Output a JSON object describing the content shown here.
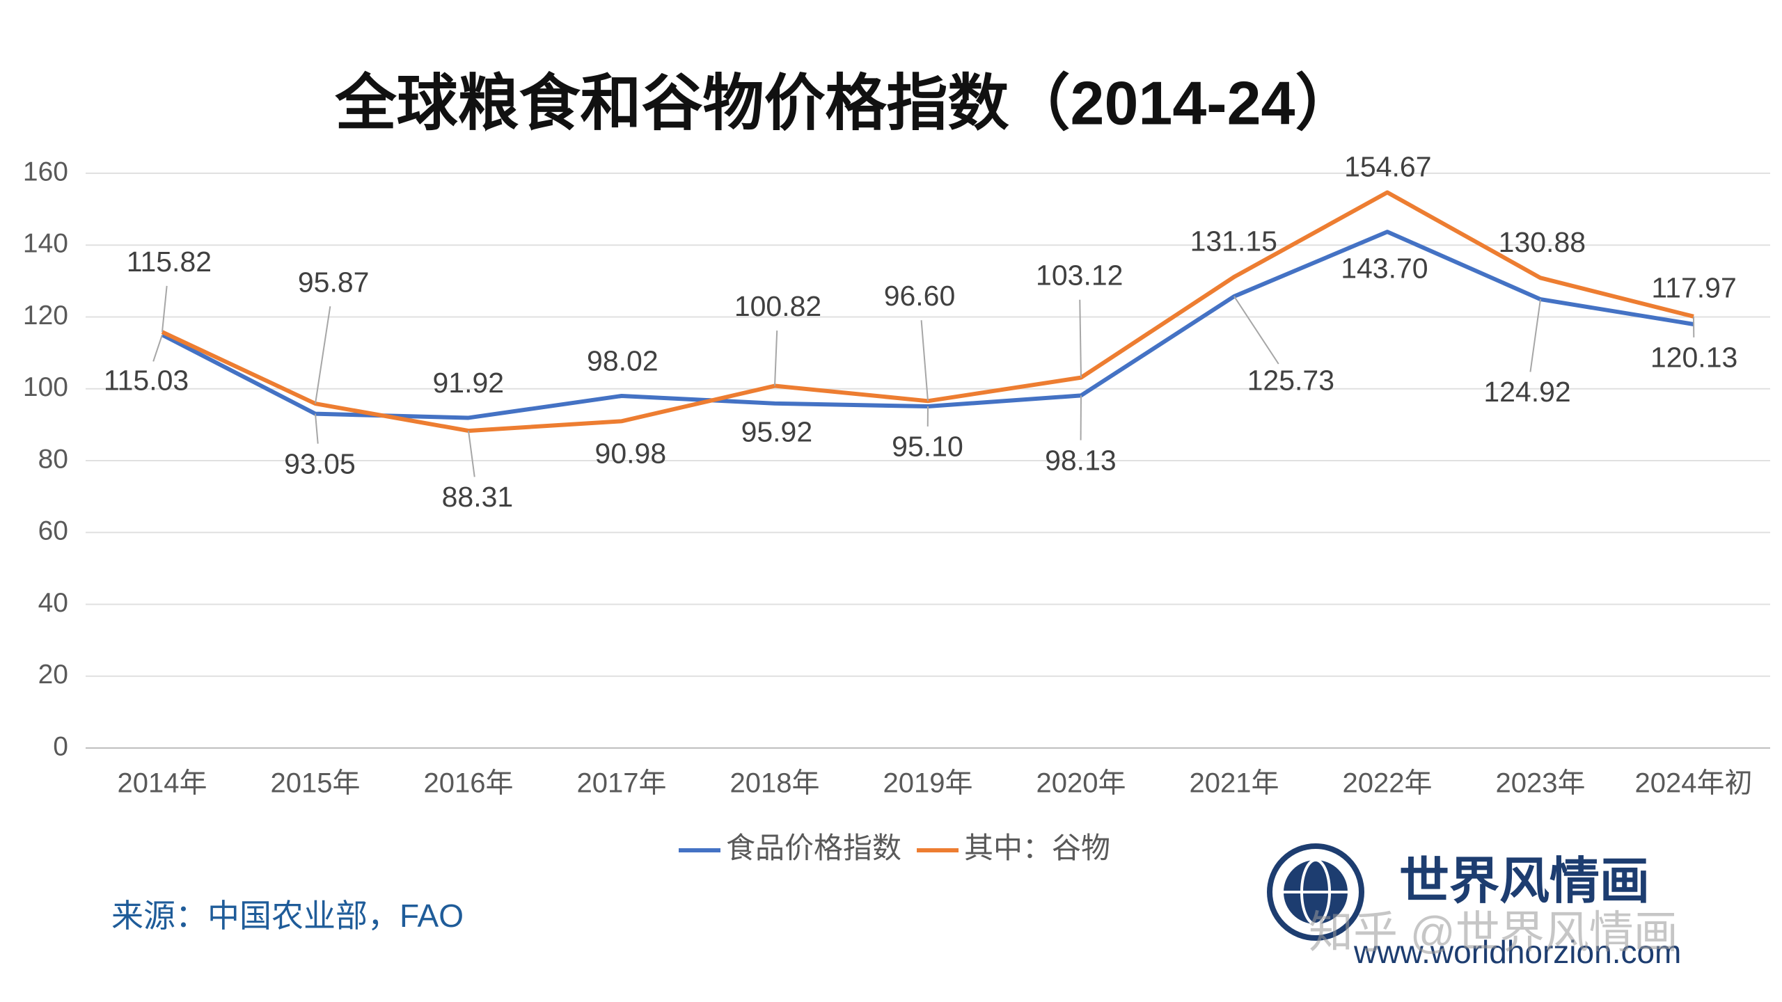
{
  "chart_data": {
    "type": "line",
    "title": "全球粮食和谷物价格指数（2014-24）",
    "categories": [
      "2014年",
      "2015年",
      "2016年",
      "2017年",
      "2018年",
      "2019年",
      "2020年",
      "2021年",
      "2022年",
      "2023年",
      "2024年初"
    ],
    "series": [
      {
        "name": "食品价格指数",
        "color": "#4472c4",
        "values": [
          115.03,
          93.05,
          91.92,
          98.02,
          95.92,
          95.1,
          98.13,
          125.73,
          143.7,
          124.92,
          117.97
        ],
        "value_labels": [
          "115.03",
          "93.05",
          "91.92",
          "98.02",
          "95.92",
          "95.10",
          "98.13",
          "125.73",
          "143.70",
          "124.92",
          "117.97"
        ]
      },
      {
        "name": "其中：谷物",
        "color": "#ed7d31",
        "values": [
          115.82,
          95.87,
          88.31,
          90.98,
          100.82,
          96.6,
          103.12,
          131.15,
          154.67,
          130.88,
          120.13
        ],
        "value_labels": [
          "115.82",
          "95.87",
          "88.31",
          "90.98",
          "100.82",
          "96.60",
          "103.12",
          "131.15",
          "154.67",
          "130.88",
          "120.13"
        ]
      }
    ],
    "ylim": [
      0,
      160
    ],
    "yticks": [
      0,
      20,
      40,
      60,
      80,
      100,
      120,
      140,
      160
    ],
    "grid": true,
    "legend": "bottom"
  },
  "footer": {
    "source": "来源：中国农业部，FAO",
    "logo": "世界风情画",
    "url": "www.worldhorzion.com",
    "watermark": "知乎 @世界风情画"
  }
}
